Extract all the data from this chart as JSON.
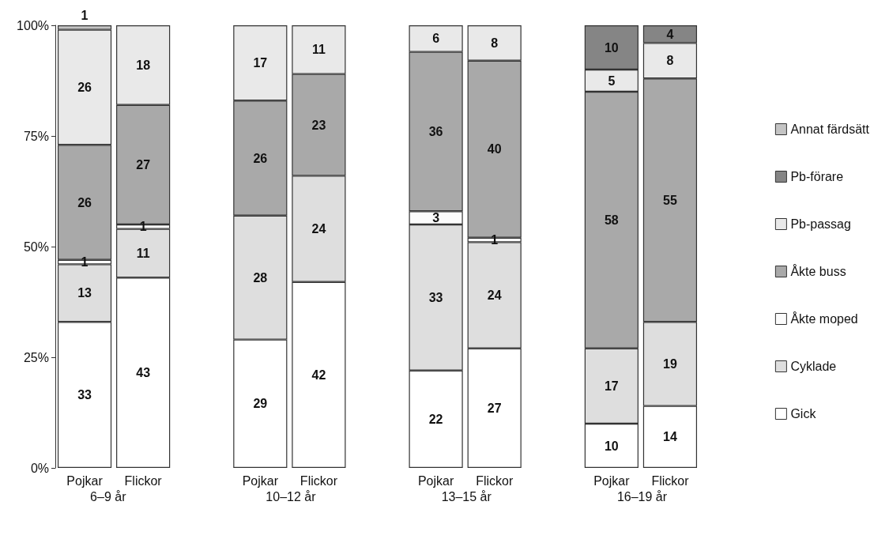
{
  "chart_data": {
    "type": "bar",
    "stacked": true,
    "data_labels": true,
    "legend": "right",
    "grid": false,
    "categories": [
      "Pojkar",
      "Flickor",
      null,
      "Pojkar",
      "Flickor",
      null,
      "Pojkar",
      "Flickor",
      null,
      "Pojkar",
      "Flickor"
    ],
    "ylim": [
      0,
      100
    ],
    "yticks": [
      {
        "value": 0,
        "label": "0%"
      },
      {
        "value": 25,
        "label": "25%"
      },
      {
        "value": 50,
        "label": "50%"
      },
      {
        "value": 75,
        "label": "75%"
      },
      {
        "value": 100,
        "label": "100%"
      }
    ],
    "annotations": [
      "6–9 år",
      "10–12 år",
      "13–15 år",
      "16–19 år"
    ],
    "series": [
      {
        "name": "Gick",
        "color": "#ffffff",
        "values": [
          33,
          43,
          null,
          29,
          42,
          null,
          22,
          27,
          null,
          10,
          14
        ]
      },
      {
        "name": "Cyklade",
        "color": "#dedede",
        "values": [
          13,
          11,
          null,
          28,
          24,
          null,
          33,
          24,
          null,
          17,
          19
        ]
      },
      {
        "name": "Åkte moped",
        "color": "#fbfbfb",
        "values": [
          1,
          1,
          null,
          null,
          null,
          null,
          3,
          1,
          null,
          null,
          null
        ]
      },
      {
        "name": "Åkte buss",
        "color": "#a9a9a9",
        "values": [
          26,
          27,
          null,
          26,
          23,
          null,
          36,
          40,
          null,
          58,
          55
        ]
      },
      {
        "name": "Pb-passag",
        "color": "#e9e9e9",
        "values": [
          26,
          18,
          null,
          17,
          11,
          null,
          6,
          8,
          null,
          5,
          8
        ]
      },
      {
        "name": "Pb-förare",
        "color": "#858585",
        "values": [
          null,
          null,
          null,
          null,
          null,
          null,
          null,
          null,
          null,
          10,
          4
        ]
      },
      {
        "name": "Annat färdsätt",
        "color": "#c4c4c4",
        "values": [
          1,
          null,
          null,
          null,
          null,
          null,
          null,
          null,
          null,
          null,
          null
        ]
      }
    ]
  }
}
